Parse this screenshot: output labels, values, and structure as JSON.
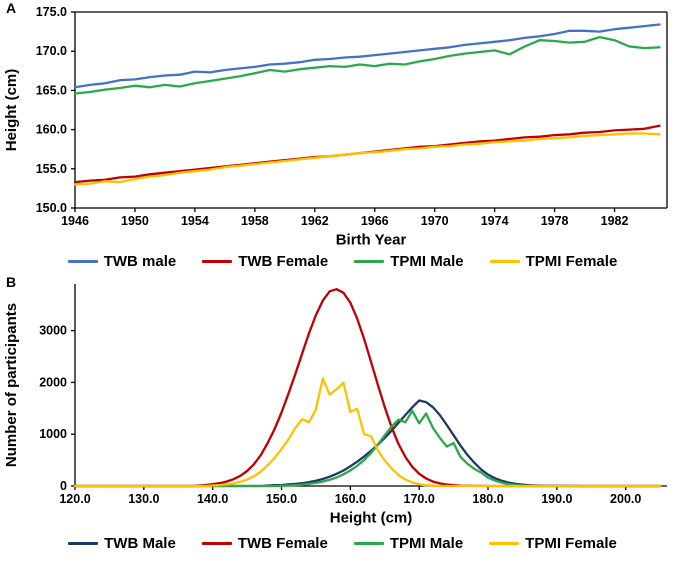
{
  "figure_colors": {
    "twb_male_a": "#4472C4",
    "twb_male_b": "#1F3864",
    "twb_female": "#C00000",
    "tpmi_male": "#2CA84C",
    "tpmi_female": "#FFC000",
    "axis": "#000000"
  },
  "chart_data": [
    {
      "id": "panelA",
      "type": "line",
      "panel_label": "A",
      "xlabel": "Birth Year",
      "ylabel": "Height (cm)",
      "xlim": [
        1946,
        1985.5
      ],
      "ylim": [
        150,
        175
      ],
      "frame": true,
      "legend_position": "bottom",
      "xticks": [
        1946,
        1950,
        1954,
        1958,
        1962,
        1966,
        1970,
        1974,
        1978,
        1982
      ],
      "xtick_labels": [
        "1946",
        "1950",
        "1954",
        "1958",
        "1962",
        "1966",
        "1970",
        "1974",
        "1978",
        "1982"
      ],
      "yticks": [
        150,
        155,
        160,
        165,
        170,
        175
      ],
      "ytick_labels": [
        "150.0",
        "155.0",
        "160.0",
        "165.0",
        "170.0",
        "175.0"
      ],
      "series": [
        {
          "name": "TWB male",
          "color": "#4472C4",
          "x_start": 1946,
          "x_step": 1,
          "values": [
            165.4,
            165.7,
            165.9,
            166.3,
            166.4,
            166.7,
            166.9,
            167.0,
            167.4,
            167.3,
            167.6,
            167.8,
            168.0,
            168.3,
            168.4,
            168.6,
            168.9,
            169.0,
            169.2,
            169.3,
            169.5,
            169.7,
            169.9,
            170.1,
            170.3,
            170.5,
            170.8,
            171.0,
            171.2,
            171.4,
            171.7,
            171.9,
            172.2,
            172.6,
            172.6,
            172.5,
            172.8,
            173.0,
            173.2,
            173.4
          ]
        },
        {
          "name": "TWB Female",
          "color": "#C00000",
          "x_start": 1946,
          "x_step": 1,
          "values": [
            153.3,
            153.5,
            153.6,
            153.9,
            154.0,
            154.3,
            154.5,
            154.7,
            154.9,
            155.1,
            155.3,
            155.5,
            155.7,
            155.9,
            156.1,
            156.3,
            156.5,
            156.6,
            156.8,
            157.0,
            157.2,
            157.4,
            157.6,
            157.8,
            157.9,
            158.1,
            158.3,
            158.5,
            158.6,
            158.8,
            159.0,
            159.1,
            159.3,
            159.4,
            159.6,
            159.7,
            159.9,
            160.0,
            160.1,
            160.5
          ]
        },
        {
          "name": "TPMI Male",
          "color": "#2CA84C",
          "x_start": 1946,
          "x_step": 1,
          "values": [
            164.6,
            164.8,
            165.1,
            165.3,
            165.6,
            165.4,
            165.7,
            165.5,
            165.9,
            166.2,
            166.5,
            166.8,
            167.2,
            167.6,
            167.4,
            167.7,
            167.9,
            168.1,
            168.0,
            168.3,
            168.1,
            168.4,
            168.3,
            168.7,
            169.0,
            169.4,
            169.7,
            169.9,
            170.1,
            169.6,
            170.6,
            171.4,
            171.3,
            171.1,
            171.2,
            171.8,
            171.4,
            170.6,
            170.4,
            170.5
          ]
        },
        {
          "name": "TPMI Female",
          "color": "#FFC000",
          "x_start": 1946,
          "x_step": 1,
          "values": [
            153.0,
            153.1,
            153.4,
            153.3,
            153.7,
            154.0,
            154.2,
            154.5,
            154.7,
            154.9,
            155.2,
            155.4,
            155.6,
            155.8,
            156.0,
            156.2,
            156.4,
            156.6,
            156.8,
            157.0,
            157.1,
            157.3,
            157.5,
            157.6,
            157.8,
            157.9,
            158.1,
            158.2,
            158.4,
            158.5,
            158.6,
            158.8,
            158.9,
            159.0,
            159.2,
            159.3,
            159.4,
            159.5,
            159.5,
            159.4
          ]
        }
      ]
    },
    {
      "id": "panelB",
      "type": "line",
      "panel_label": "B",
      "xlabel": "Height (cm)",
      "ylabel": "Number of participants",
      "xlim": [
        120,
        206
      ],
      "ylim": [
        0,
        3900
      ],
      "frame": false,
      "legend_position": "bottom",
      "xticks": [
        120,
        130,
        140,
        150,
        160,
        170,
        180,
        190,
        200
      ],
      "xtick_labels": [
        "120.0",
        "130.0",
        "140.0",
        "150.0",
        "160.0",
        "170.0",
        "180.0",
        "190.0",
        "200.0"
      ],
      "yticks": [
        0,
        1000,
        2000,
        3000
      ],
      "ytick_labels": [
        "0",
        "1000",
        "2000",
        "3000"
      ],
      "series": [
        {
          "name": "TWB Male",
          "color": "#1F3864",
          "x_start": 120,
          "x_step": 1,
          "values": [
            0,
            0,
            0,
            0,
            0,
            0,
            0,
            0,
            0,
            0,
            0,
            0,
            0,
            0,
            0,
            0,
            0,
            0,
            0,
            0,
            0,
            0,
            0,
            0,
            0,
            0,
            0,
            0,
            10,
            15,
            20,
            30,
            40,
            55,
            75,
            100,
            135,
            180,
            235,
            300,
            380,
            470,
            570,
            680,
            800,
            930,
            1070,
            1220,
            1370,
            1520,
            1650,
            1620,
            1520,
            1370,
            1180,
            980,
            780,
            600,
            450,
            320,
            220,
            150,
            100,
            65,
            40,
            25,
            15,
            10,
            6,
            4,
            3,
            2,
            1,
            1,
            0,
            0,
            0,
            0,
            0,
            0,
            0,
            0,
            0,
            0,
            0,
            0
          ]
        },
        {
          "name": "TWB Female",
          "color": "#C00000",
          "x_start": 120,
          "x_step": 1,
          "values": [
            0,
            0,
            0,
            0,
            0,
            0,
            0,
            0,
            0,
            0,
            0,
            0,
            0,
            0,
            0,
            0,
            0,
            0,
            10,
            20,
            35,
            55,
            85,
            130,
            195,
            290,
            420,
            600,
            830,
            1100,
            1420,
            1780,
            2160,
            2560,
            2950,
            3300,
            3580,
            3760,
            3800,
            3730,
            3540,
            3230,
            2840,
            2400,
            1950,
            1520,
            1130,
            810,
            560,
            370,
            235,
            145,
            85,
            50,
            28,
            15,
            8,
            4,
            2,
            1,
            0,
            0,
            0,
            0,
            0,
            0,
            0,
            0,
            0,
            0,
            0,
            0,
            0,
            0,
            0,
            0,
            0,
            0,
            0,
            0,
            0,
            0,
            0,
            0,
            0,
            0
          ]
        },
        {
          "name": "TPMI Male",
          "color": "#2CA84C",
          "x_start": 120,
          "x_step": 1,
          "values": [
            0,
            0,
            0,
            0,
            0,
            0,
            0,
            0,
            0,
            0,
            0,
            0,
            0,
            0,
            0,
            0,
            0,
            0,
            0,
            0,
            0,
            0,
            0,
            0,
            0,
            0,
            0,
            0,
            0,
            0,
            5,
            10,
            15,
            25,
            40,
            60,
            85,
            120,
            165,
            225,
            300,
            390,
            500,
            640,
            800,
            980,
            1150,
            1280,
            1230,
            1450,
            1210,
            1400,
            1120,
            930,
            760,
            830,
            560,
            430,
            330,
            260,
            160,
            105,
            65,
            35,
            18,
            8,
            3,
            0,
            0,
            0,
            0,
            0,
            0,
            0,
            0,
            0,
            0,
            0,
            0,
            0,
            0,
            0,
            0,
            0,
            0,
            0
          ]
        },
        {
          "name": "TPMI Female",
          "color": "#FFC000",
          "x_start": 120,
          "x_step": 1,
          "values": [
            0,
            0,
            0,
            0,
            0,
            0,
            0,
            0,
            0,
            0,
            0,
            0,
            0,
            0,
            0,
            0,
            0,
            0,
            0,
            0,
            10,
            18,
            30,
            50,
            80,
            125,
            190,
            280,
            400,
            545,
            710,
            900,
            1120,
            1290,
            1230,
            1480,
            2080,
            1760,
            1870,
            1990,
            1430,
            1490,
            1000,
            960,
            690,
            490,
            340,
            210,
            125,
            68,
            33,
            14,
            5,
            2,
            0,
            0,
            0,
            0,
            0,
            0,
            0,
            0,
            0,
            0,
            0,
            0,
            0,
            0,
            0,
            0,
            0,
            0,
            0,
            0,
            0,
            0,
            0,
            0,
            0,
            0,
            0,
            0,
            0,
            0,
            0,
            0
          ]
        }
      ]
    }
  ]
}
